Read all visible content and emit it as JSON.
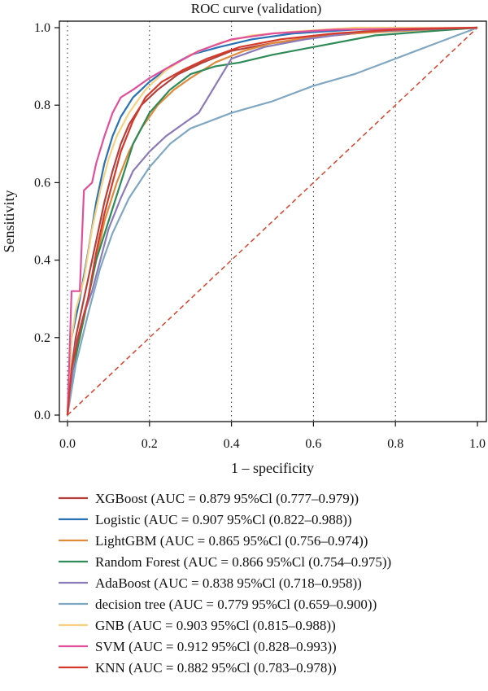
{
  "chart_data": {
    "type": "line",
    "title": "ROC curve (validation)",
    "xlabel": "1 – specificity",
    "ylabel": "Sensitivity",
    "xlim": [
      0,
      1
    ],
    "ylim": [
      0,
      1
    ],
    "x_ticks": [
      "0.0",
      "0.2",
      "0.4",
      "0.6",
      "0.8",
      "1.0"
    ],
    "y_ticks": [
      "0.0",
      "0.2",
      "0.4",
      "0.6",
      "0.8",
      "1.0"
    ],
    "x_tick_values": [
      0,
      0.2,
      0.4,
      0.6,
      0.8,
      1.0
    ],
    "y_tick_values": [
      0,
      0.2,
      0.4,
      0.6,
      0.8,
      1.0
    ],
    "grid": "vertical dotted lines at x ticks",
    "legend_position": "below plot",
    "reference_line": {
      "color": "#d8432b",
      "style": "dashed",
      "points": [
        [
          0,
          0
        ],
        [
          1,
          1
        ]
      ]
    },
    "series": [
      {
        "name": "XGBoost (AUC = 0.879 95%Cl (0.777–0.979))",
        "color": "#b5403a",
        "points": [
          [
            0,
            0
          ],
          [
            0.01,
            0.12
          ],
          [
            0.02,
            0.2
          ],
          [
            0.03,
            0.25
          ],
          [
            0.05,
            0.35
          ],
          [
            0.07,
            0.45
          ],
          [
            0.09,
            0.55
          ],
          [
            0.11,
            0.63
          ],
          [
            0.13,
            0.7
          ],
          [
            0.15,
            0.75
          ],
          [
            0.18,
            0.8
          ],
          [
            0.22,
            0.84
          ],
          [
            0.27,
            0.88
          ],
          [
            0.33,
            0.91
          ],
          [
            0.4,
            0.94
          ],
          [
            0.5,
            0.96
          ],
          [
            0.6,
            0.975
          ],
          [
            0.75,
            0.99
          ],
          [
            1,
            1
          ]
        ]
      },
      {
        "name": "Logistic (AUC = 0.907 95%Cl (0.822–0.988))",
        "color": "#2871b5",
        "points": [
          [
            0,
            0
          ],
          [
            0.01,
            0.2
          ],
          [
            0.03,
            0.3
          ],
          [
            0.05,
            0.42
          ],
          [
            0.07,
            0.55
          ],
          [
            0.09,
            0.65
          ],
          [
            0.11,
            0.72
          ],
          [
            0.13,
            0.77
          ],
          [
            0.16,
            0.82
          ],
          [
            0.2,
            0.86
          ],
          [
            0.25,
            0.9
          ],
          [
            0.3,
            0.93
          ],
          [
            0.37,
            0.95
          ],
          [
            0.45,
            0.97
          ],
          [
            0.55,
            0.985
          ],
          [
            0.7,
            0.995
          ],
          [
            1,
            1
          ]
        ]
      },
      {
        "name": "LightGBM (AUC = 0.865 95%Cl (0.756–0.974))",
        "color": "#e08a3c",
        "points": [
          [
            0,
            0
          ],
          [
            0.01,
            0.1
          ],
          [
            0.03,
            0.2
          ],
          [
            0.05,
            0.3
          ],
          [
            0.07,
            0.4
          ],
          [
            0.09,
            0.5
          ],
          [
            0.12,
            0.6
          ],
          [
            0.15,
            0.68
          ],
          [
            0.18,
            0.74
          ],
          [
            0.22,
            0.8
          ],
          [
            0.26,
            0.84
          ],
          [
            0.3,
            0.87
          ],
          [
            0.36,
            0.91
          ],
          [
            0.43,
            0.94
          ],
          [
            0.5,
            0.96
          ],
          [
            0.62,
            0.98
          ],
          [
            0.78,
            0.99
          ],
          [
            1,
            1
          ]
        ]
      },
      {
        "name": "Random Forest (AUC = 0.866 95%Cl (0.754–0.975))",
        "color": "#2e8b57",
        "points": [
          [
            0,
            0
          ],
          [
            0.01,
            0.1
          ],
          [
            0.03,
            0.2
          ],
          [
            0.05,
            0.3
          ],
          [
            0.07,
            0.4
          ],
          [
            0.1,
            0.5
          ],
          [
            0.13,
            0.6
          ],
          [
            0.16,
            0.7
          ],
          [
            0.2,
            0.78
          ],
          [
            0.25,
            0.84
          ],
          [
            0.3,
            0.88
          ],
          [
            0.36,
            0.9
          ],
          [
            0.42,
            0.91
          ],
          [
            0.5,
            0.93
          ],
          [
            0.6,
            0.95
          ],
          [
            0.75,
            0.98
          ],
          [
            1,
            1
          ]
        ]
      },
      {
        "name": "AdaBoost (AUC = 0.838 95%Cl (0.718–0.958))",
        "color": "#8b7ab8",
        "points": [
          [
            0,
            0
          ],
          [
            0.02,
            0.18
          ],
          [
            0.04,
            0.26
          ],
          [
            0.06,
            0.32
          ],
          [
            0.08,
            0.4
          ],
          [
            0.1,
            0.48
          ],
          [
            0.13,
            0.56
          ],
          [
            0.16,
            0.63
          ],
          [
            0.2,
            0.68
          ],
          [
            0.24,
            0.72
          ],
          [
            0.28,
            0.75
          ],
          [
            0.32,
            0.78
          ],
          [
            0.36,
            0.85
          ],
          [
            0.4,
            0.92
          ],
          [
            0.48,
            0.95
          ],
          [
            0.58,
            0.97
          ],
          [
            0.72,
            0.99
          ],
          [
            1,
            1
          ]
        ]
      },
      {
        "name": "decision tree (AUC = 0.779 95%Cl (0.659–0.900))",
        "color": "#7fa7c2",
        "points": [
          [
            0,
            0
          ],
          [
            0.02,
            0.13
          ],
          [
            0.05,
            0.26
          ],
          [
            0.08,
            0.38
          ],
          [
            0.11,
            0.47
          ],
          [
            0.15,
            0.56
          ],
          [
            0.2,
            0.64
          ],
          [
            0.25,
            0.7
          ],
          [
            0.3,
            0.74
          ],
          [
            0.4,
            0.78
          ],
          [
            0.5,
            0.81
          ],
          [
            0.6,
            0.85
          ],
          [
            0.7,
            0.88
          ],
          [
            0.8,
            0.92
          ],
          [
            0.9,
            0.96
          ],
          [
            1,
            1
          ]
        ]
      },
      {
        "name": "GNB (AUC = 0.903 95%Cl (0.815–0.988))",
        "color": "#f6d27f",
        "points": [
          [
            0,
            0
          ],
          [
            0.01,
            0.2
          ],
          [
            0.02,
            0.27
          ],
          [
            0.04,
            0.35
          ],
          [
            0.06,
            0.48
          ],
          [
            0.08,
            0.58
          ],
          [
            0.1,
            0.66
          ],
          [
            0.12,
            0.72
          ],
          [
            0.15,
            0.78
          ],
          [
            0.19,
            0.84
          ],
          [
            0.24,
            0.89
          ],
          [
            0.3,
            0.93
          ],
          [
            0.37,
            0.96
          ],
          [
            0.45,
            0.98
          ],
          [
            0.55,
            0.99
          ],
          [
            0.7,
            1.0
          ],
          [
            1,
            1
          ]
        ]
      },
      {
        "name": "SVM (AUC = 0.912 95%Cl (0.828–0.993))",
        "color": "#e14f9b",
        "points": [
          [
            0,
            0
          ],
          [
            0.01,
            0.32
          ],
          [
            0.03,
            0.32
          ],
          [
            0.04,
            0.58
          ],
          [
            0.06,
            0.6
          ],
          [
            0.07,
            0.65
          ],
          [
            0.09,
            0.72
          ],
          [
            0.11,
            0.78
          ],
          [
            0.13,
            0.82
          ],
          [
            0.16,
            0.84
          ],
          [
            0.2,
            0.87
          ],
          [
            0.25,
            0.9
          ],
          [
            0.32,
            0.94
          ],
          [
            0.4,
            0.97
          ],
          [
            0.5,
            0.985
          ],
          [
            0.65,
            0.995
          ],
          [
            1,
            1
          ]
        ]
      },
      {
        "name": "KNN (AUC = 0.882 95%Cl (0.783–0.978))",
        "color": "#d43a2c",
        "points": [
          [
            0,
            0
          ],
          [
            0.01,
            0.12
          ],
          [
            0.03,
            0.22
          ],
          [
            0.05,
            0.3
          ],
          [
            0.07,
            0.42
          ],
          [
            0.09,
            0.52
          ],
          [
            0.11,
            0.6
          ],
          [
            0.13,
            0.68
          ],
          [
            0.16,
            0.76
          ],
          [
            0.19,
            0.82
          ],
          [
            0.23,
            0.86
          ],
          [
            0.28,
            0.89
          ],
          [
            0.34,
            0.92
          ],
          [
            0.42,
            0.95
          ],
          [
            0.52,
            0.97
          ],
          [
            0.65,
            0.985
          ],
          [
            0.8,
            0.995
          ],
          [
            1,
            1
          ]
        ]
      }
    ]
  }
}
